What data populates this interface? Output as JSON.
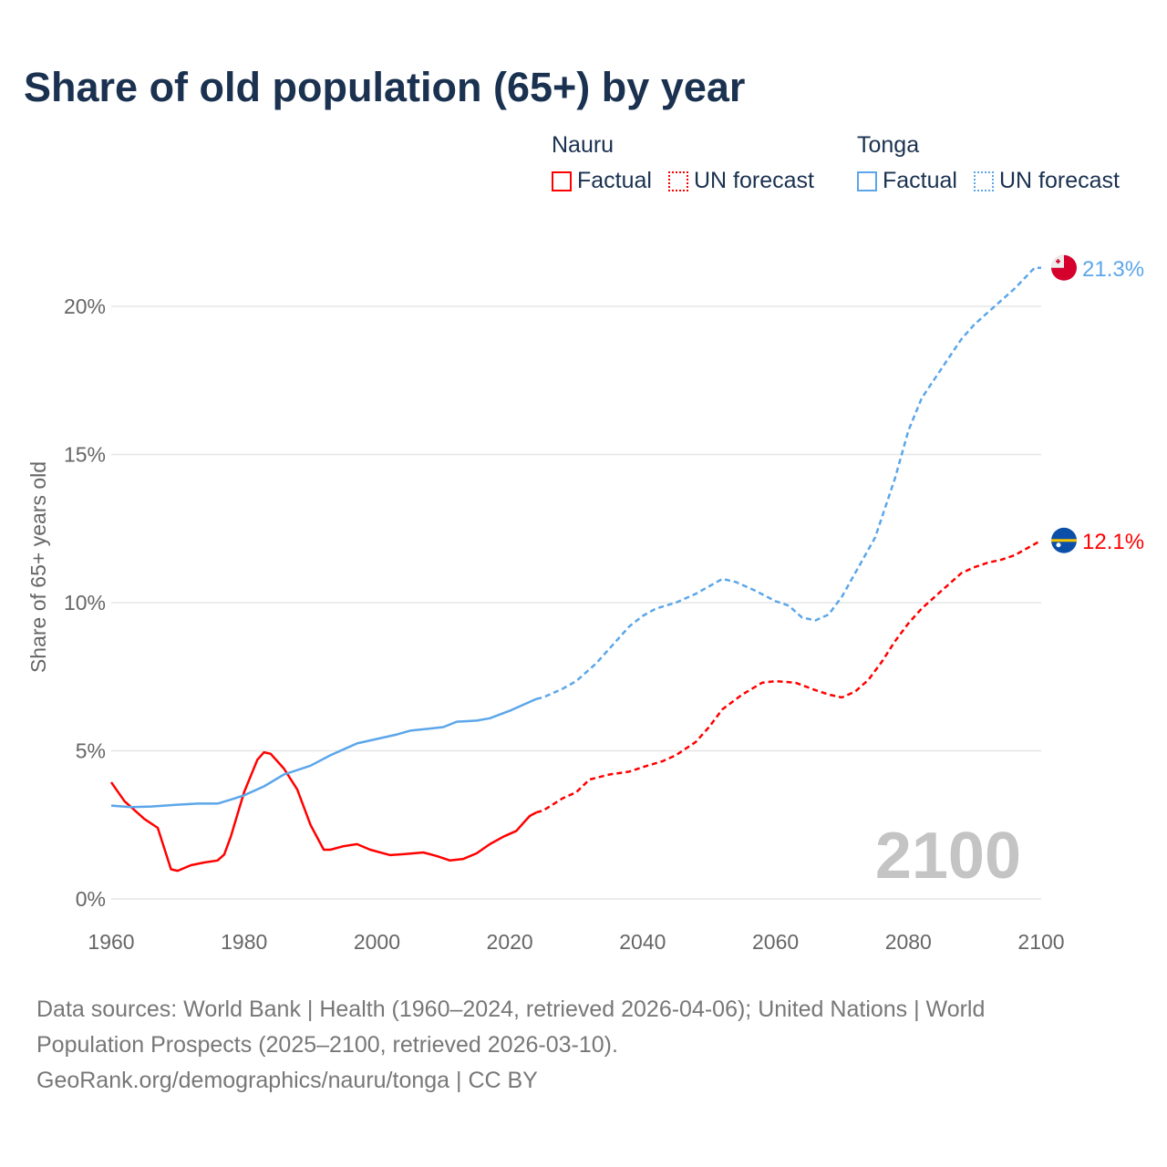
{
  "title": "Share of old population (65+) by year",
  "legend": {
    "groups": [
      {
        "name": "Nauru",
        "color": "#ff0000",
        "factual": "Factual",
        "forecast": "UN forecast"
      },
      {
        "name": "Tonga",
        "color": "#5ba6ea",
        "factual": "Factual",
        "forecast": "UN forecast"
      }
    ]
  },
  "chart_data": {
    "type": "line",
    "title": "Share of old population (65+) by year",
    "xlabel": "",
    "ylabel": "Share of 65+ years old",
    "xlim": [
      1960,
      2100
    ],
    "ylim": [
      0,
      22
    ],
    "x_ticks": [
      "1960",
      "1980",
      "2000",
      "2020",
      "2040",
      "2060",
      "2080",
      "2100"
    ],
    "y_ticks": [
      {
        "v": 0,
        "label": "0%"
      },
      {
        "v": 5,
        "label": "5%"
      },
      {
        "v": 10,
        "label": "10%"
      },
      {
        "v": 15,
        "label": "15%"
      },
      {
        "v": 20,
        "label": "20%"
      }
    ],
    "year_watermark": "2100",
    "series": [
      {
        "name": "Nauru",
        "color": "#ff0000",
        "end_label": "12.1%",
        "factual": [
          [
            1960,
            3.94
          ],
          [
            1962,
            3.3
          ],
          [
            1965,
            2.7
          ],
          [
            1967,
            2.4
          ],
          [
            1969,
            1.0
          ],
          [
            1970,
            0.95
          ],
          [
            1972,
            1.14
          ],
          [
            1974,
            1.23
          ],
          [
            1976,
            1.3
          ],
          [
            1977,
            1.5
          ],
          [
            1978,
            2.1
          ],
          [
            1980,
            3.6
          ],
          [
            1982,
            4.7
          ],
          [
            1983,
            4.95
          ],
          [
            1984,
            4.9
          ],
          [
            1986,
            4.4
          ],
          [
            1988,
            3.7
          ],
          [
            1990,
            2.5
          ],
          [
            1992,
            1.66
          ],
          [
            1993,
            1.66
          ],
          [
            1995,
            1.78
          ],
          [
            1997,
            1.85
          ],
          [
            1999,
            1.66
          ],
          [
            2002,
            1.48
          ],
          [
            2004,
            1.51
          ],
          [
            2007,
            1.57
          ],
          [
            2009,
            1.45
          ],
          [
            2011,
            1.3
          ],
          [
            2013,
            1.35
          ],
          [
            2015,
            1.54
          ],
          [
            2017,
            1.85
          ],
          [
            2019,
            2.1
          ],
          [
            2021,
            2.3
          ],
          [
            2022,
            2.55
          ],
          [
            2023,
            2.8
          ],
          [
            2024,
            2.92
          ]
        ],
        "forecast": [
          [
            2024,
            2.92
          ],
          [
            2025,
            2.98
          ],
          [
            2028,
            3.4
          ],
          [
            2030,
            3.6
          ],
          [
            2032,
            4.03
          ],
          [
            2035,
            4.2
          ],
          [
            2038,
            4.3
          ],
          [
            2040,
            4.45
          ],
          [
            2043,
            4.65
          ],
          [
            2045,
            4.85
          ],
          [
            2048,
            5.3
          ],
          [
            2050,
            5.8
          ],
          [
            2052,
            6.4
          ],
          [
            2055,
            6.9
          ],
          [
            2058,
            7.3
          ],
          [
            2060,
            7.35
          ],
          [
            2063,
            7.3
          ],
          [
            2066,
            7.05
          ],
          [
            2068,
            6.9
          ],
          [
            2070,
            6.8
          ],
          [
            2072,
            7.0
          ],
          [
            2074,
            7.4
          ],
          [
            2076,
            8.0
          ],
          [
            2078,
            8.7
          ],
          [
            2080,
            9.3
          ],
          [
            2082,
            9.8
          ],
          [
            2084,
            10.2
          ],
          [
            2086,
            10.6
          ],
          [
            2088,
            11.0
          ],
          [
            2090,
            11.2
          ],
          [
            2092,
            11.35
          ],
          [
            2094,
            11.45
          ],
          [
            2096,
            11.6
          ],
          [
            2098,
            11.85
          ],
          [
            2100,
            12.1
          ]
        ]
      },
      {
        "name": "Tonga",
        "color": "#5ba6ea",
        "end_label": "21.3%",
        "factual": [
          [
            1960,
            3.15
          ],
          [
            1963,
            3.1
          ],
          [
            1966,
            3.12
          ],
          [
            1968,
            3.15
          ],
          [
            1970,
            3.18
          ],
          [
            1973,
            3.22
          ],
          [
            1976,
            3.22
          ],
          [
            1978,
            3.35
          ],
          [
            1980,
            3.5
          ],
          [
            1983,
            3.8
          ],
          [
            1986,
            4.2
          ],
          [
            1990,
            4.5
          ],
          [
            1993,
            4.85
          ],
          [
            1997,
            5.25
          ],
          [
            2000,
            5.4
          ],
          [
            2003,
            5.55
          ],
          [
            2005,
            5.68
          ],
          [
            2008,
            5.75
          ],
          [
            2010,
            5.8
          ],
          [
            2012,
            5.98
          ],
          [
            2015,
            6.02
          ],
          [
            2017,
            6.1
          ],
          [
            2020,
            6.35
          ],
          [
            2022,
            6.55
          ],
          [
            2024,
            6.75
          ]
        ],
        "forecast": [
          [
            2024,
            6.75
          ],
          [
            2025,
            6.8
          ],
          [
            2028,
            7.1
          ],
          [
            2030,
            7.35
          ],
          [
            2033,
            7.95
          ],
          [
            2036,
            8.7
          ],
          [
            2038,
            9.2
          ],
          [
            2040,
            9.55
          ],
          [
            2042,
            9.8
          ],
          [
            2045,
            10.0
          ],
          [
            2048,
            10.3
          ],
          [
            2050,
            10.55
          ],
          [
            2052,
            10.8
          ],
          [
            2054,
            10.7
          ],
          [
            2057,
            10.4
          ],
          [
            2060,
            10.05
          ],
          [
            2062,
            9.9
          ],
          [
            2064,
            9.5
          ],
          [
            2066,
            9.4
          ],
          [
            2068,
            9.6
          ],
          [
            2070,
            10.2
          ],
          [
            2072,
            11.0
          ],
          [
            2075,
            12.2
          ],
          [
            2078,
            14.2
          ],
          [
            2080,
            15.8
          ],
          [
            2082,
            16.9
          ],
          [
            2085,
            17.9
          ],
          [
            2088,
            18.9
          ],
          [
            2090,
            19.4
          ],
          [
            2093,
            20.0
          ],
          [
            2096,
            20.6
          ],
          [
            2099,
            21.3
          ],
          [
            2100,
            21.3
          ]
        ]
      }
    ]
  },
  "footer": {
    "sources": "Data sources: World Bank | Health (1960–2024, retrieved 2026-04-06); United Nations | World Population Prospects (2025–2100, retrieved 2026-03-10).",
    "credit": "GeoRank.org/demographics/nauru/tonga | CC BY"
  }
}
